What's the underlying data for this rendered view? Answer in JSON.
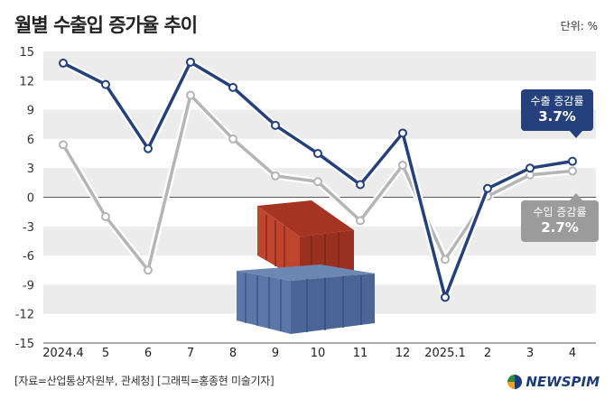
{
  "header": {
    "title": "월별 수출입 증가율 추이",
    "unit": "단위: %"
  },
  "footer": {
    "source": "[자료=산업통상자원부, 관세청] [그래픽=홍종현 미술기자]",
    "logo": "NEWSPIM"
  },
  "callouts": {
    "export": {
      "label": "수출 증감률",
      "value": "3.7%"
    },
    "import": {
      "label": "수입 증감률",
      "value": "2.7%"
    }
  },
  "colors": {
    "export": "#25417d",
    "import": "#b5b5b5",
    "band": "#ececec"
  },
  "chart_data": {
    "type": "line",
    "title": "월별 수출입 증가율 추이",
    "categories": [
      "2024.4",
      "5",
      "6",
      "7",
      "8",
      "9",
      "10",
      "11",
      "12",
      "2025.1",
      "2",
      "3",
      "4"
    ],
    "ylim": [
      -15,
      15
    ],
    "yticks": [
      15,
      12,
      9,
      6,
      3,
      0,
      -3,
      -6,
      -9,
      -12,
      -15
    ],
    "grid": "alternating horizontal bands",
    "series": [
      {
        "name": "수출 증감률",
        "values": [
          13.8,
          11.6,
          5.0,
          13.9,
          11.3,
          7.4,
          4.5,
          1.3,
          6.6,
          -10.3,
          0.9,
          3.0,
          3.7
        ]
      },
      {
        "name": "수입 증감률",
        "values": [
          5.4,
          -2.0,
          -7.5,
          10.5,
          6.0,
          2.2,
          1.6,
          -2.4,
          3.3,
          -6.4,
          0.1,
          2.3,
          2.7
        ]
      }
    ]
  }
}
